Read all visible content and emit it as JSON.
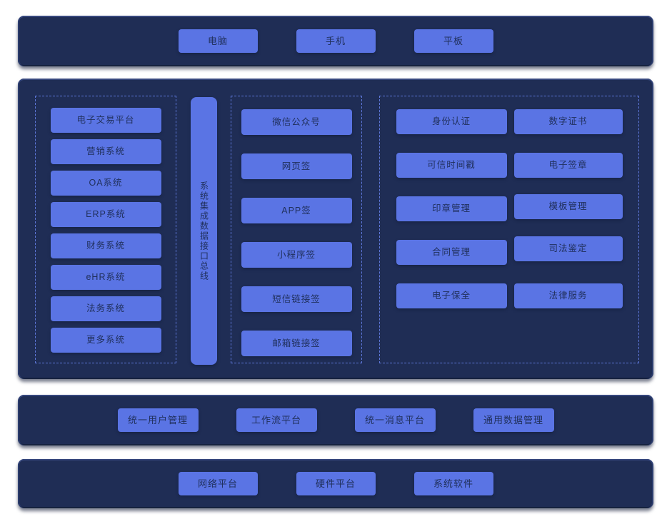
{
  "colors": {
    "page_bg": "#ffffff",
    "layer_bg": "#1f2d55",
    "node_bg": "#5a74e4",
    "node_text": "#20305c",
    "dashed_border": "#5e77d9"
  },
  "terminal_layer": {
    "items": [
      "电脑",
      "手机",
      "平板"
    ]
  },
  "main_layer": {
    "business_systems": [
      "电子交易平台",
      "营销系统",
      "OA系统",
      "ERP系统",
      "财务系统",
      "eHR系统",
      "法务系统",
      "更多系统"
    ],
    "integration_bus": "系统集成数据接口总线",
    "sign_channels": [
      "微信公众号",
      "网页签",
      "APP签",
      "小程序签",
      "短信链接签",
      "邮箱链接签"
    ],
    "services": [
      "身份认证",
      "数字证书",
      "可信时间戳",
      "电子签章",
      "印章管理",
      "模板管理",
      "合同管理",
      "司法鉴定",
      "电子保全",
      "法律服务"
    ]
  },
  "platform_layer": {
    "items": [
      "统一用户管理",
      "工作流平台",
      "统一消息平台",
      "通用数据管理"
    ]
  },
  "infrastructure_layer": {
    "items": [
      "网络平台",
      "硬件平台",
      "系统软件"
    ]
  }
}
